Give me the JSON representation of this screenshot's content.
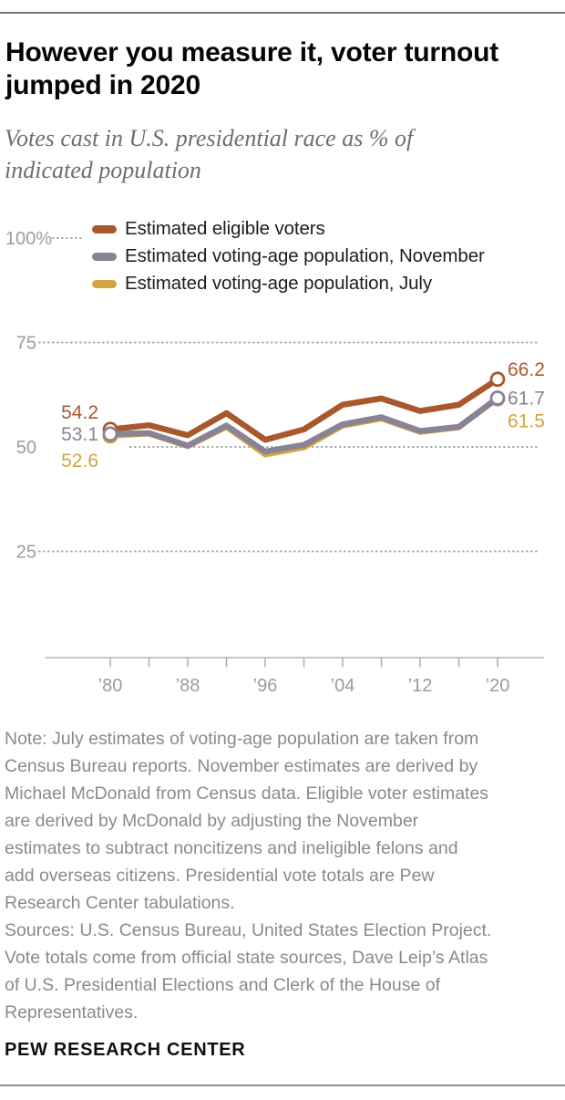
{
  "header": {
    "title": "However you measure it, voter turnout\njumped in 2020",
    "subtitle": "Votes cast in U.S. presidential race as % of\nindicated population"
  },
  "chart_data": {
    "type": "line",
    "title": "However you measure it, voter turnout jumped in 2020",
    "subtitle": "Votes cast in U.S. presidential race as % of indicated population",
    "x": [
      1980,
      1984,
      1988,
      1992,
      1996,
      2000,
      2004,
      2008,
      2012,
      2016,
      2020
    ],
    "x_tick_labels": [
      {
        "year": 1980,
        "label": "’80"
      },
      {
        "year": 1988,
        "label": "’88"
      },
      {
        "year": 1996,
        "label": "’96"
      },
      {
        "year": 2004,
        "label": "’04"
      },
      {
        "year": 2012,
        "label": "’12"
      },
      {
        "year": 2020,
        "label": "’20"
      }
    ],
    "y_ticks": [
      {
        "value": 100,
        "label": "100%"
      },
      {
        "value": 75,
        "label": "75"
      },
      {
        "value": 50,
        "label": "50"
      },
      {
        "value": 25,
        "label": "25"
      }
    ],
    "ylim": [
      0,
      100
    ],
    "grid": "dotted",
    "legend_position": "top-left",
    "series": [
      {
        "key": "eligible",
        "name": "Estimated eligible voters",
        "color": "#A9582C",
        "values": [
          54.2,
          55.2,
          52.8,
          58.1,
          51.7,
          54.2,
          60.1,
          61.6,
          58.6,
          60.1,
          66.2
        ],
        "first_label": "54.2",
        "last_label": "66.2"
      },
      {
        "key": "vap-november",
        "name": "Estimated voting-age population, November",
        "color": "#8A8295",
        "values": [
          53.1,
          53.3,
          50.3,
          55.1,
          48.9,
          50.5,
          55.4,
          57.1,
          53.8,
          54.8,
          61.7
        ],
        "first_label": "53.1",
        "last_label": "61.7"
      },
      {
        "key": "vap-july",
        "name": "Estimated voting-age population, July",
        "color": "#D1A63C",
        "values": [
          52.6,
          53.1,
          50.1,
          54.7,
          48.1,
          49.8,
          55.0,
          56.7,
          53.5,
          54.6,
          61.5
        ],
        "first_label": "52.6",
        "last_label": "61.5"
      }
    ]
  },
  "footnote": {
    "note": "Note: July estimates of voting-age population are taken from\nCensus Bureau reports. November estimates are derived by\nMichael McDonald from Census data. Eligible voter estimates\nare derived by McDonald by adjusting the November\nestimates to subtract noncitizens and ineligible felons and\nadd overseas citizens. Presidential vote totals are Pew\nResearch Center tabulations.",
    "sources": "Sources: U.S. Census Bureau, United States Election Project.\nVote totals come from official state sources, Dave Leip’s Atlas\nof U.S. Presidential Elections and Clerk of the House of\nRepresentatives.",
    "brand": "PEW RESEARCH CENTER"
  }
}
